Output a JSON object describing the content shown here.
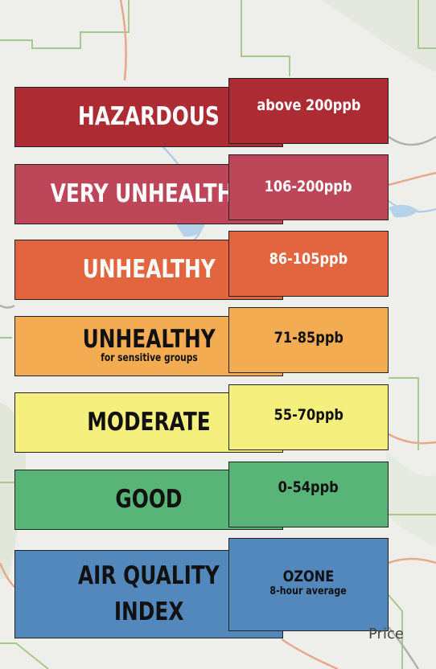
{
  "aqi": {
    "levels": [
      {
        "label": "HAZARDOUS",
        "range": "above 200ppb",
        "color": "#ad2b33"
      },
      {
        "label": "VERY UNHEALTHY",
        "range": "106-200ppb",
        "color": "#bd4659"
      },
      {
        "label": "UNHEALTHY",
        "range": "86-105ppb",
        "color": "#e2653f"
      },
      {
        "label": "UNHEALTHY",
        "sublabel": "for sensitive groups",
        "range": "71-85ppb",
        "color": "#f3ac52"
      },
      {
        "label": "MODERATE",
        "range": "55-70ppb",
        "color": "#f5ef7e"
      },
      {
        "label": "GOOD",
        "range": "0-54ppb",
        "color": "#58b477"
      }
    ],
    "index": {
      "label_line1": "AIR QUALITY",
      "label_line2": "INDEX",
      "measure": "OZONE",
      "measure_sub": "8-hour average",
      "color": "#5388bd"
    }
  },
  "map": {
    "place_label": "Price"
  }
}
